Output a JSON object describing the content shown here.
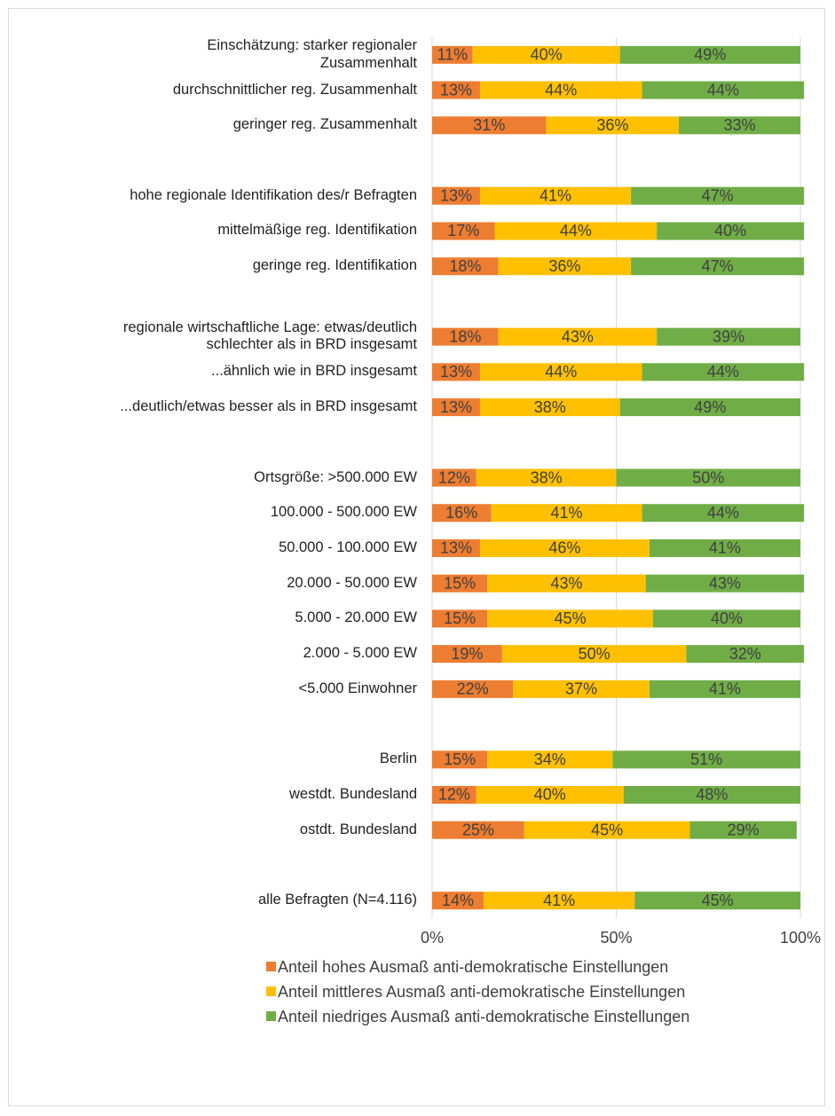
{
  "chart_data": {
    "type": "stacked_bar_horizontal",
    "categories": [
      "Einschätzung: starker regionaler\nZusammenhalt",
      "durchschnittlicher reg. Zusammenhalt",
      "geringer reg. Zusammenhalt",
      null,
      "hohe regionale Identifikation des/r Befragten",
      "mittelmäßige reg. Identifikation",
      "geringe reg. Identifikation",
      null,
      "regionale wirtschaftliche Lage: etwas/deutlich\nschlechter als in BRD insgesamt",
      "...ähnlich wie in BRD insgesamt",
      "...deutlich/etwas besser als in BRD insgesamt",
      null,
      "Ortsgröße: >500.000 EW",
      "100.000 - 500.000 EW",
      "50.000 - 100.000 EW",
      "20.000 - 50.000 EW",
      "5.000 - 20.000 EW",
      "2.000 - 5.000 EW",
      "<5.000 Einwohner",
      null,
      "Berlin",
      "westdt. Bundesland",
      "ostdt. Bundesland",
      null,
      "alle Befragten (N=4.116)"
    ],
    "series": [
      {
        "name": "Anteil hohes Ausmaß anti-demokratische Einstellungen",
        "color": "#ed7d31",
        "values": [
          11,
          13,
          31,
          null,
          13,
          17,
          18,
          null,
          18,
          13,
          13,
          null,
          12,
          16,
          13,
          15,
          15,
          19,
          22,
          null,
          15,
          12,
          25,
          null,
          14
        ],
        "value_labels": [
          "11%",
          "13%",
          "31%",
          null,
          "13%",
          "17%",
          "18%",
          null,
          "18%",
          "13%",
          "13%",
          null,
          "12%",
          "16%",
          "13%",
          "15%",
          "15%",
          "19%",
          "22%",
          null,
          "15%",
          "12%",
          "25%",
          null,
          "14%"
        ]
      },
      {
        "name": "Anteil mittleres Ausmaß anti-demokratische Einstellungen",
        "color": "#ffc000",
        "values": [
          40,
          44,
          36,
          null,
          41,
          44,
          36,
          null,
          43,
          44,
          38,
          null,
          38,
          41,
          46,
          43,
          45,
          50,
          37,
          null,
          34,
          40,
          45,
          null,
          41
        ],
        "value_labels": [
          "40%",
          "44%",
          "36%",
          null,
          "41%",
          "44%",
          "36%",
          null,
          "43%",
          "44%",
          "38%",
          null,
          "38%",
          "41%",
          "46%",
          "43%",
          "45%",
          "50%",
          "37%",
          null,
          "34%",
          "40%",
          "45%",
          null,
          "41%"
        ]
      },
      {
        "name": "Anteil niedriges Ausmaß anti-demokratische Einstellungen",
        "color": "#70ad47",
        "values": [
          49,
          44,
          33,
          null,
          47,
          40,
          47,
          null,
          39,
          44,
          49,
          null,
          50,
          44,
          41,
          43,
          40,
          32,
          41,
          null,
          51,
          48,
          29,
          null,
          45
        ],
        "value_labels": [
          "49%",
          "44%",
          "33%",
          null,
          "47%",
          "40%",
          "47%",
          null,
          "39%",
          "44%",
          "49%",
          null,
          "50%",
          "44%",
          "41%",
          "43%",
          "40%",
          "32%",
          "41%",
          null,
          "51%",
          "48%",
          "29%",
          null,
          "45%"
        ]
      }
    ],
    "xlim": [
      0,
      100
    ],
    "xticks": [
      {
        "value": 0,
        "label": "0%"
      },
      {
        "value": 50,
        "label": "50%"
      },
      {
        "value": 100,
        "label": "100%"
      }
    ],
    "grid": true,
    "legend": "bottom"
  }
}
